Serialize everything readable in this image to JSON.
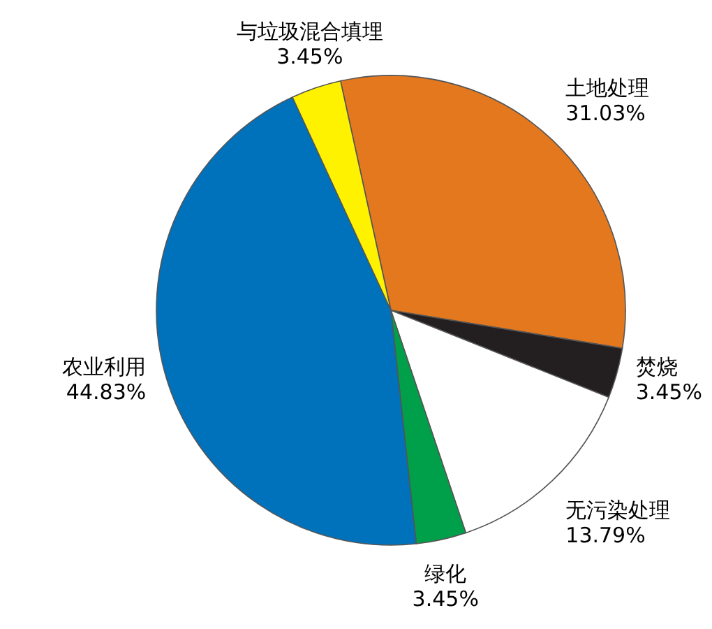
{
  "chart_data": {
    "type": "pie",
    "categories": [
      "土地处理",
      "焚烧",
      "无污染处理",
      "绿化",
      "农业利用",
      "与垃圾混合填埋"
    ],
    "values": [
      31.03,
      3.45,
      13.79,
      3.45,
      44.83,
      3.45
    ],
    "colors": [
      "#e3781f",
      "#231f20",
      "#ffffff",
      "#00a04b",
      "#0072bc",
      "#fff200"
    ],
    "value_labels": [
      "31.03%",
      "3.45%",
      "13.79%",
      "3.45%",
      "44.83%",
      "3.45%"
    ]
  }
}
